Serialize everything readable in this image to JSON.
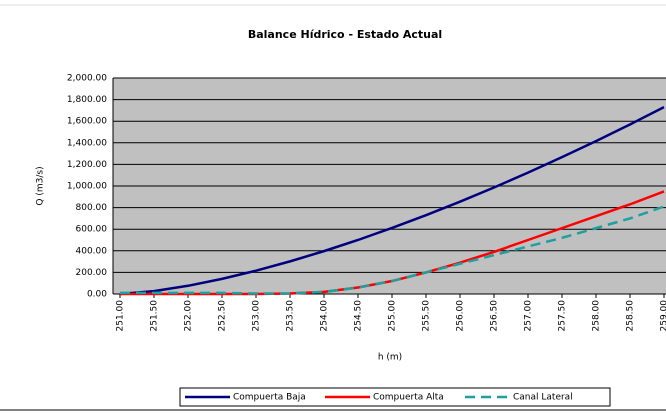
{
  "chart_data": {
    "type": "line",
    "title": "Balance Hídrico - Estado Actual",
    "x_label": "h (m)",
    "y_label": "Q (m3/s)",
    "categories": [
      "251.00",
      "251.50",
      "252.00",
      "252.50",
      "253.00",
      "253.50",
      "254.00",
      "254.50",
      "255.00",
      "255.50",
      "256.00",
      "256.50",
      "257.00",
      "257.50",
      "258.00",
      "258.50",
      "259.00"
    ],
    "series": [
      {
        "name": "Compuerta Baja",
        "color": "#00007f",
        "dash": false,
        "values": [
          0,
          27,
          76,
          140,
          216,
          302,
          397,
          500,
          612,
          730,
          855,
          986,
          1124,
          1267,
          1416,
          1570,
          1730
        ]
      },
      {
        "name": "Compuerta Alta",
        "color": "#ff0000",
        "dash": false,
        "values": [
          0,
          0,
          0,
          0,
          0,
          5,
          20,
          60,
          120,
          200,
          290,
          390,
          500,
          610,
          720,
          830,
          950
        ]
      },
      {
        "name": "Canal Lateral",
        "color": "#1f9f9f",
        "dash": true,
        "values": [
          10,
          10,
          10,
          10,
          5,
          5,
          20,
          60,
          120,
          200,
          280,
          360,
          440,
          520,
          610,
          700,
          810
        ]
      }
    ],
    "ylim": [
      0,
      2000
    ],
    "yticks": [
      {
        "value": 0,
        "label": "0.00"
      },
      {
        "value": 200,
        "label": "200.00"
      },
      {
        "value": 400,
        "label": "400.00"
      },
      {
        "value": 600,
        "label": "600.00"
      },
      {
        "value": 800,
        "label": "800.00"
      },
      {
        "value": 1000,
        "label": "1,000.00"
      },
      {
        "value": 1200,
        "label": "1,200.00"
      },
      {
        "value": 1400,
        "label": "1,400.00"
      },
      {
        "value": 1600,
        "label": "1,600.00"
      },
      {
        "value": 1800,
        "label": "1,800.00"
      },
      {
        "value": 2000,
        "label": "2,000.00"
      }
    ],
    "grid": true
  }
}
